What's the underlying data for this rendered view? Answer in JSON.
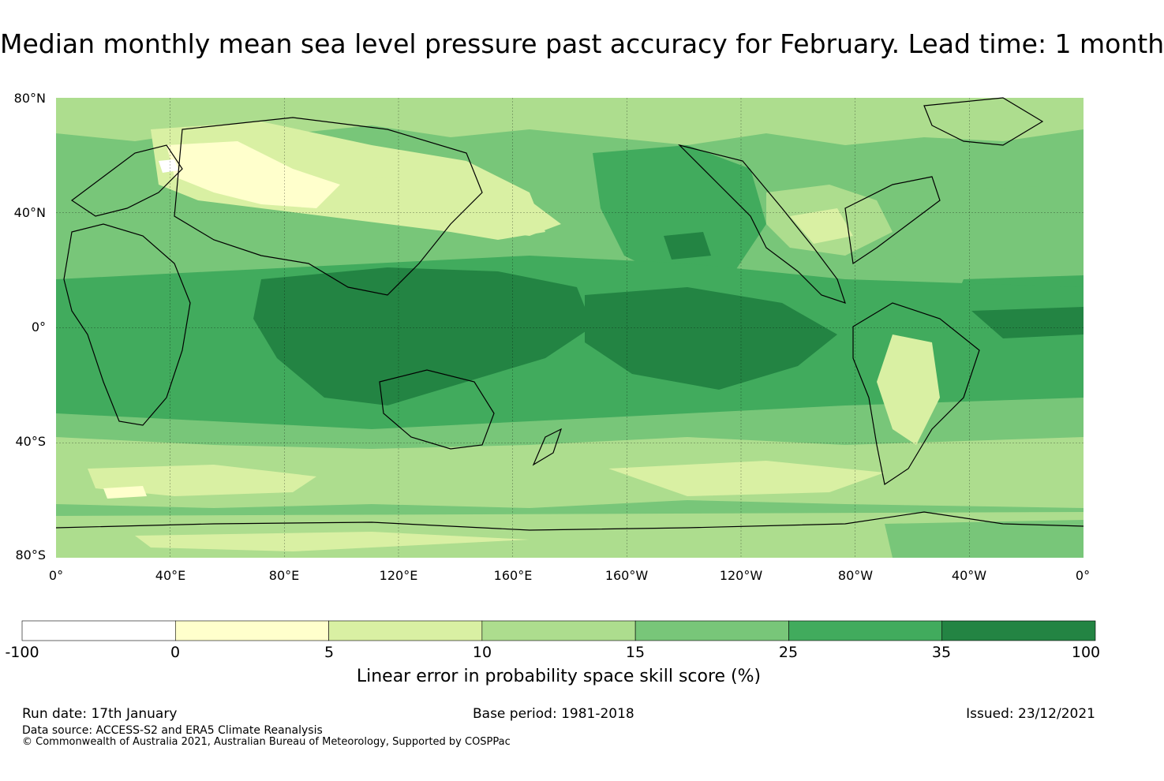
{
  "title": "Median monthly mean sea level pressure past accuracy for February. Lead time: 1 month",
  "map": {
    "lat_labels": [
      "80°N",
      "40°N",
      "0°",
      "40°S",
      "80°S"
    ],
    "lon_labels": [
      "0°",
      "40°E",
      "80°E",
      "120°E",
      "160°E",
      "160°W",
      "120°W",
      "80°W",
      "40°W",
      "0°"
    ],
    "background_color": "#78c679"
  },
  "colorbar": {
    "ticks": [
      "-100",
      "0",
      "5",
      "10",
      "15",
      "25",
      "35",
      "100"
    ],
    "colors": [
      "#ffffff",
      "#ffffcc",
      "#d9f0a3",
      "#addd8e",
      "#78c679",
      "#41ab5d",
      "#238443"
    ],
    "label": "Linear error in probability space skill score (%)"
  },
  "footer": {
    "run_date": "Run date: 17th January",
    "base_period": "Base period: 1981-2018",
    "issued": "Issued: 23/12/2021",
    "data_source": "Data source: ACCESS-S2 and ERA5 Climate Reanalysis",
    "copyright": "© Commonwealth of Australia 2021, Australian Bureau of Meteorology, Supported by COSPPac"
  }
}
